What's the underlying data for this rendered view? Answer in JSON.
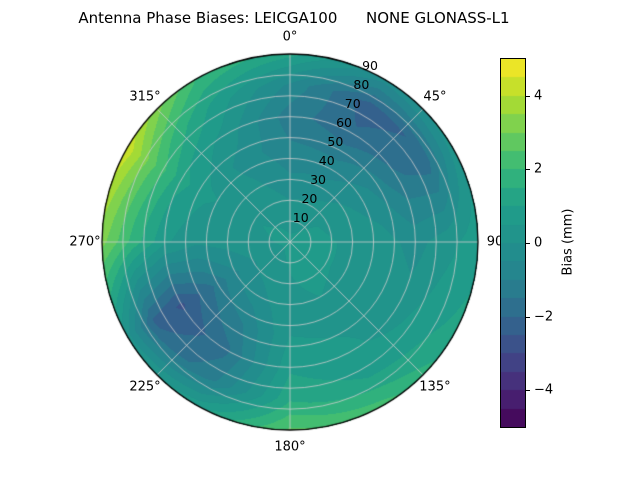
{
  "chart_data": {
    "type": "heatmap",
    "subtype": "polar_contour",
    "title": "Antenna Phase Biases: LEICGA100      NONE GLONASS-L1",
    "colormap": "viridis",
    "colormap_stops": [
      "#440154",
      "#482878",
      "#3e4a89",
      "#31688e",
      "#26828e",
      "#21918c",
      "#1f9e89",
      "#35b779",
      "#6ece58",
      "#b5de2b",
      "#fde725"
    ],
    "value_range": [
      -5,
      5
    ],
    "level_step": 0.5,
    "grid_color": "#cdcdcd",
    "azimuth_ticks": [
      {
        "deg": 0,
        "label": "0°"
      },
      {
        "deg": 45,
        "label": "45°"
      },
      {
        "deg": 90,
        "label": "90"
      },
      {
        "deg": 135,
        "label": "135°"
      },
      {
        "deg": 180,
        "label": "180°"
      },
      {
        "deg": 225,
        "label": "225°"
      },
      {
        "deg": 270,
        "label": "270°"
      },
      {
        "deg": 315,
        "label": "315°"
      }
    ],
    "radial_ticks": [
      "10",
      "20",
      "30",
      "40",
      "50",
      "60",
      "70",
      "80",
      "90"
    ],
    "radial_label_angle_deg": 24.5,
    "grid": {
      "azimuth_deg": [
        0,
        30,
        60,
        90,
        120,
        150,
        180,
        210,
        240,
        270,
        300,
        330
      ],
      "zenith_deg": [
        0,
        15,
        30,
        45,
        60,
        75,
        90
      ],
      "values": [
        [
          0.6,
          0.2,
          -0.4,
          -0.9,
          -1.3,
          -0.6,
          1.2
        ],
        [
          0.6,
          0.3,
          -0.3,
          -1.0,
          -1.9,
          -2.3,
          -0.3
        ],
        [
          0.6,
          0.5,
          0.1,
          -0.4,
          -1.4,
          -1.8,
          0.3
        ],
        [
          0.6,
          0.6,
          0.4,
          0.2,
          -0.2,
          0.3,
          0.8
        ],
        [
          0.6,
          0.6,
          0.4,
          0.3,
          0.2,
          0.8,
          1.2
        ],
        [
          0.6,
          0.6,
          0.5,
          0.4,
          0.6,
          1.0,
          2.2
        ],
        [
          0.6,
          0.5,
          0.4,
          0.5,
          0.9,
          1.4,
          2.6
        ],
        [
          0.6,
          0.3,
          -0.2,
          -1.0,
          -1.6,
          -1.2,
          0.8
        ],
        [
          0.6,
          0.2,
          -0.6,
          -1.7,
          -2.6,
          -2.1,
          0.2
        ],
        [
          0.6,
          0.4,
          0.2,
          0.1,
          0.6,
          1.8,
          3.2
        ],
        [
          0.6,
          0.5,
          0.3,
          0.6,
          1.2,
          2.6,
          4.4
        ],
        [
          0.6,
          0.4,
          0.1,
          -0.2,
          0.3,
          0.9,
          2.0
        ]
      ]
    },
    "colorbar": {
      "label": "Bias (mm)",
      "ticks": [
        {
          "value": -4,
          "label": "−4"
        },
        {
          "value": -2,
          "label": "−2"
        },
        {
          "value": 0,
          "label": "0"
        },
        {
          "value": 2,
          "label": "2"
        },
        {
          "value": 4,
          "label": "4"
        }
      ]
    }
  }
}
